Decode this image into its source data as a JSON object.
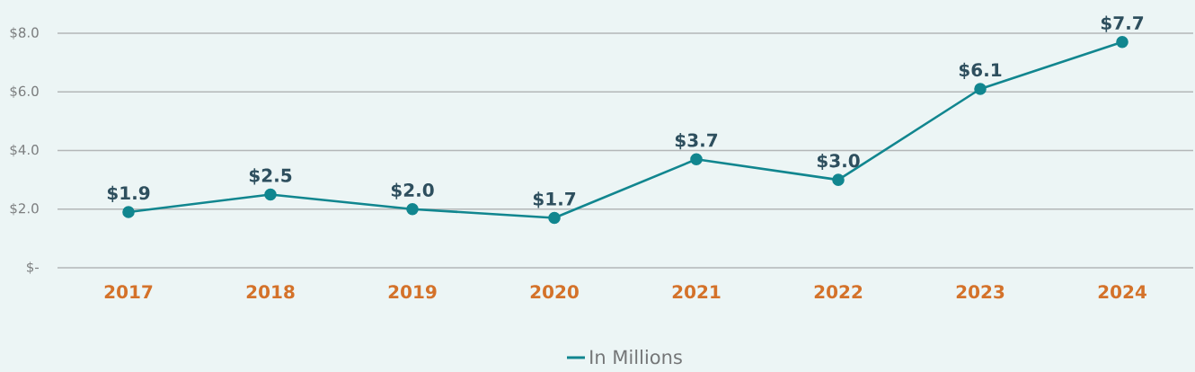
{
  "chart_data": {
    "type": "line",
    "categories": [
      "2017",
      "2018",
      "2019",
      "2020",
      "2021",
      "2022",
      "2023",
      "2024"
    ],
    "series": [
      {
        "name": "In Millions",
        "color": "#11868f",
        "values": [
          1.9,
          2.5,
          2.0,
          1.7,
          3.7,
          3.0,
          6.1,
          7.7
        ],
        "value_labels": [
          "$1.9",
          "$2.5",
          "$2.0",
          "$1.7",
          "$3.7",
          "$3.0",
          "$6.1",
          "$7.7"
        ]
      }
    ],
    "ylim": [
      0,
      8
    ],
    "yticks": [
      {
        "value": 0,
        "label": "$-"
      },
      {
        "value": 2,
        "label": "$2.0"
      },
      {
        "value": 4,
        "label": "$4.0"
      },
      {
        "value": 6,
        "label": "$6.0"
      },
      {
        "value": 8,
        "label": "$8.0"
      }
    ],
    "grid": "y",
    "legend": "bottom",
    "marker": "circle",
    "line_style": "solid"
  }
}
